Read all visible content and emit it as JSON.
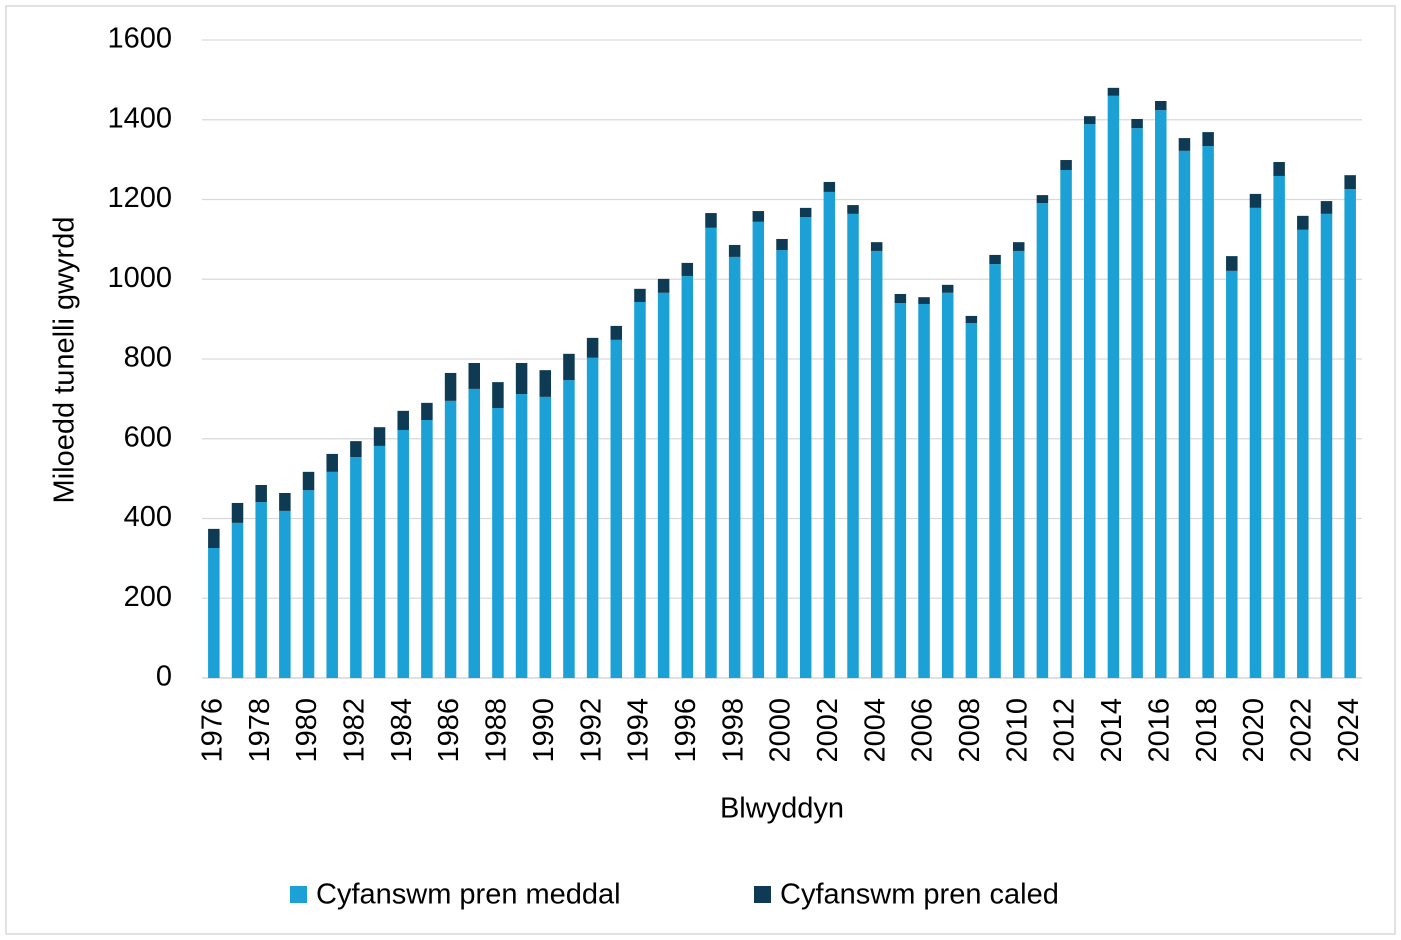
{
  "chart_data": {
    "type": "stacked_bar",
    "x_label": "Blwyddyn",
    "y_label": "Miloedd tunelli gwyrdd",
    "categories": [
      "1976",
      null,
      "1978",
      null,
      "1980",
      null,
      "1982",
      null,
      "1984",
      null,
      "1986",
      null,
      "1988",
      null,
      "1990",
      null,
      "1992",
      null,
      "1994",
      null,
      "1996",
      null,
      "1998",
      null,
      "2000",
      null,
      "2002",
      null,
      "2004",
      null,
      "2006",
      null,
      "2008",
      null,
      "2010",
      null,
      "2012",
      null,
      "2014",
      null,
      "2016",
      null,
      "2018",
      null,
      "2020",
      null,
      "2022",
      null,
      "2024"
    ],
    "series": [
      {
        "name": "Cyfanswm pren meddal",
        "color": "#1ba1d6",
        "values": [
          326,
          389,
          441,
          419,
          471,
          517,
          554,
          582,
          622,
          647,
          695,
          725,
          677,
          712,
          705,
          747,
          803,
          848,
          943,
          966,
          1008,
          1129,
          1056,
          1144,
          1073,
          1156,
          1219,
          1164,
          1071,
          940,
          938,
          966,
          890,
          1038,
          1071,
          1191,
          1274,
          1389,
          1460,
          1379,
          1424,
          1322,
          1334,
          1021,
          1179,
          1259,
          1124,
          1164,
          1226
        ]
      },
      {
        "name": "Cyfanswm pren caled",
        "color": "#0e3b53",
        "values": [
          48,
          50,
          43,
          45,
          46,
          45,
          40,
          47,
          48,
          43,
          70,
          65,
          65,
          78,
          67,
          66,
          50,
          35,
          33,
          35,
          33,
          37,
          30,
          27,
          28,
          23,
          25,
          22,
          22,
          23,
          17,
          20,
          18,
          23,
          22,
          20,
          25,
          20,
          20,
          23,
          23,
          32,
          35,
          37,
          35,
          35,
          35,
          32,
          35
        ]
      }
    ],
    "ylim": [
      0,
      1600
    ],
    "yticks": [
      0,
      200,
      400,
      600,
      800,
      1000,
      1200,
      1400,
      1600
    ],
    "grid": true,
    "legend": "bottom"
  }
}
